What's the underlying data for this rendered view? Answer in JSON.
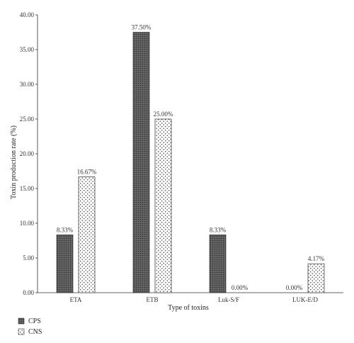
{
  "chart_data": {
    "type": "bar",
    "title": "",
    "xlabel": "Type of toxins",
    "ylabel": "Toxin production rate (%)",
    "ylim": [
      0,
      40
    ],
    "yticks": [
      "0.00",
      "5.00",
      "10.00",
      "15.00",
      "20.00",
      "25.00",
      "30.00",
      "35.00",
      "40.00"
    ],
    "categories": [
      "ETA",
      "ETB",
      "Luk-S/F",
      "LUK-E/D"
    ],
    "series": [
      {
        "name": "CPS",
        "values": [
          8.33,
          37.5,
          8.33,
          0
        ],
        "labels": [
          "8.33%",
          "37.50%",
          "8.33%",
          "0.00%"
        ],
        "pattern": "dark-grid",
        "color": "#555555"
      },
      {
        "name": "CNS",
        "values": [
          16.67,
          25.0,
          0,
          4.17
        ],
        "labels": [
          "16.67%",
          "25.00%",
          "0.00%",
          "4.17%"
        ],
        "pattern": "dotted",
        "color": "#ffffff"
      }
    ],
    "legend_position": "bottom-left",
    "grid": false
  }
}
